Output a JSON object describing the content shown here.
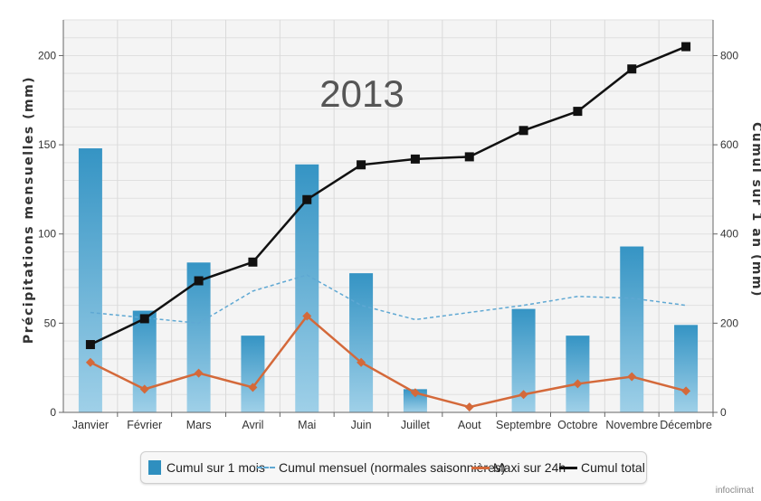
{
  "chart_data": {
    "type": "bar",
    "title": "2013",
    "categories": [
      "Janvier",
      "Février",
      "Mars",
      "Avril",
      "Mai",
      "Juin",
      "Juillet",
      "Aout",
      "Septembre",
      "Octobre",
      "Novembre",
      "Décembre"
    ],
    "ylabel": "Précipitations mensuelles (mm)",
    "y2label": "Cumul sur 1 an (mm)",
    "ylim": [
      0,
      220
    ],
    "y2lim": [
      0,
      880
    ],
    "yticks": [
      0,
      50,
      100,
      150,
      200
    ],
    "y2ticks": [
      0,
      200,
      400,
      600,
      800
    ],
    "grid": true,
    "legend_position": "bottom",
    "series": [
      {
        "name": "Cumul sur 1 mois",
        "kind": "bar",
        "axis": "left",
        "color": "#4aa3cc",
        "values": [
          148,
          57,
          84,
          43,
          139,
          78,
          13,
          0,
          58,
          43,
          93,
          49
        ]
      },
      {
        "name": "Cumul mensuel (normales saisonnières)",
        "kind": "dashed-line",
        "axis": "left",
        "color": "#5fa8d3",
        "values": [
          56,
          53,
          50,
          68,
          77,
          60,
          52,
          56,
          60,
          65,
          64,
          60
        ]
      },
      {
        "name": "Maxi sur 24h",
        "kind": "line-diamond",
        "axis": "left",
        "color": "#d4693a",
        "values": [
          28,
          13,
          22,
          14,
          54,
          28,
          11,
          3,
          10,
          16,
          20,
          12
        ]
      },
      {
        "name": "Cumul total",
        "kind": "line-square",
        "axis": "right",
        "color": "#111111",
        "values": [
          152,
          210,
          295,
          337,
          477,
          555,
          568,
          573,
          632,
          675,
          770,
          820
        ]
      }
    ]
  },
  "legend": {
    "items": [
      "Cumul sur 1 mois",
      "Cumul mensuel (normales saisonnières)",
      "Maxi sur 24h",
      "Cumul total"
    ]
  },
  "credit": "infoclimat"
}
